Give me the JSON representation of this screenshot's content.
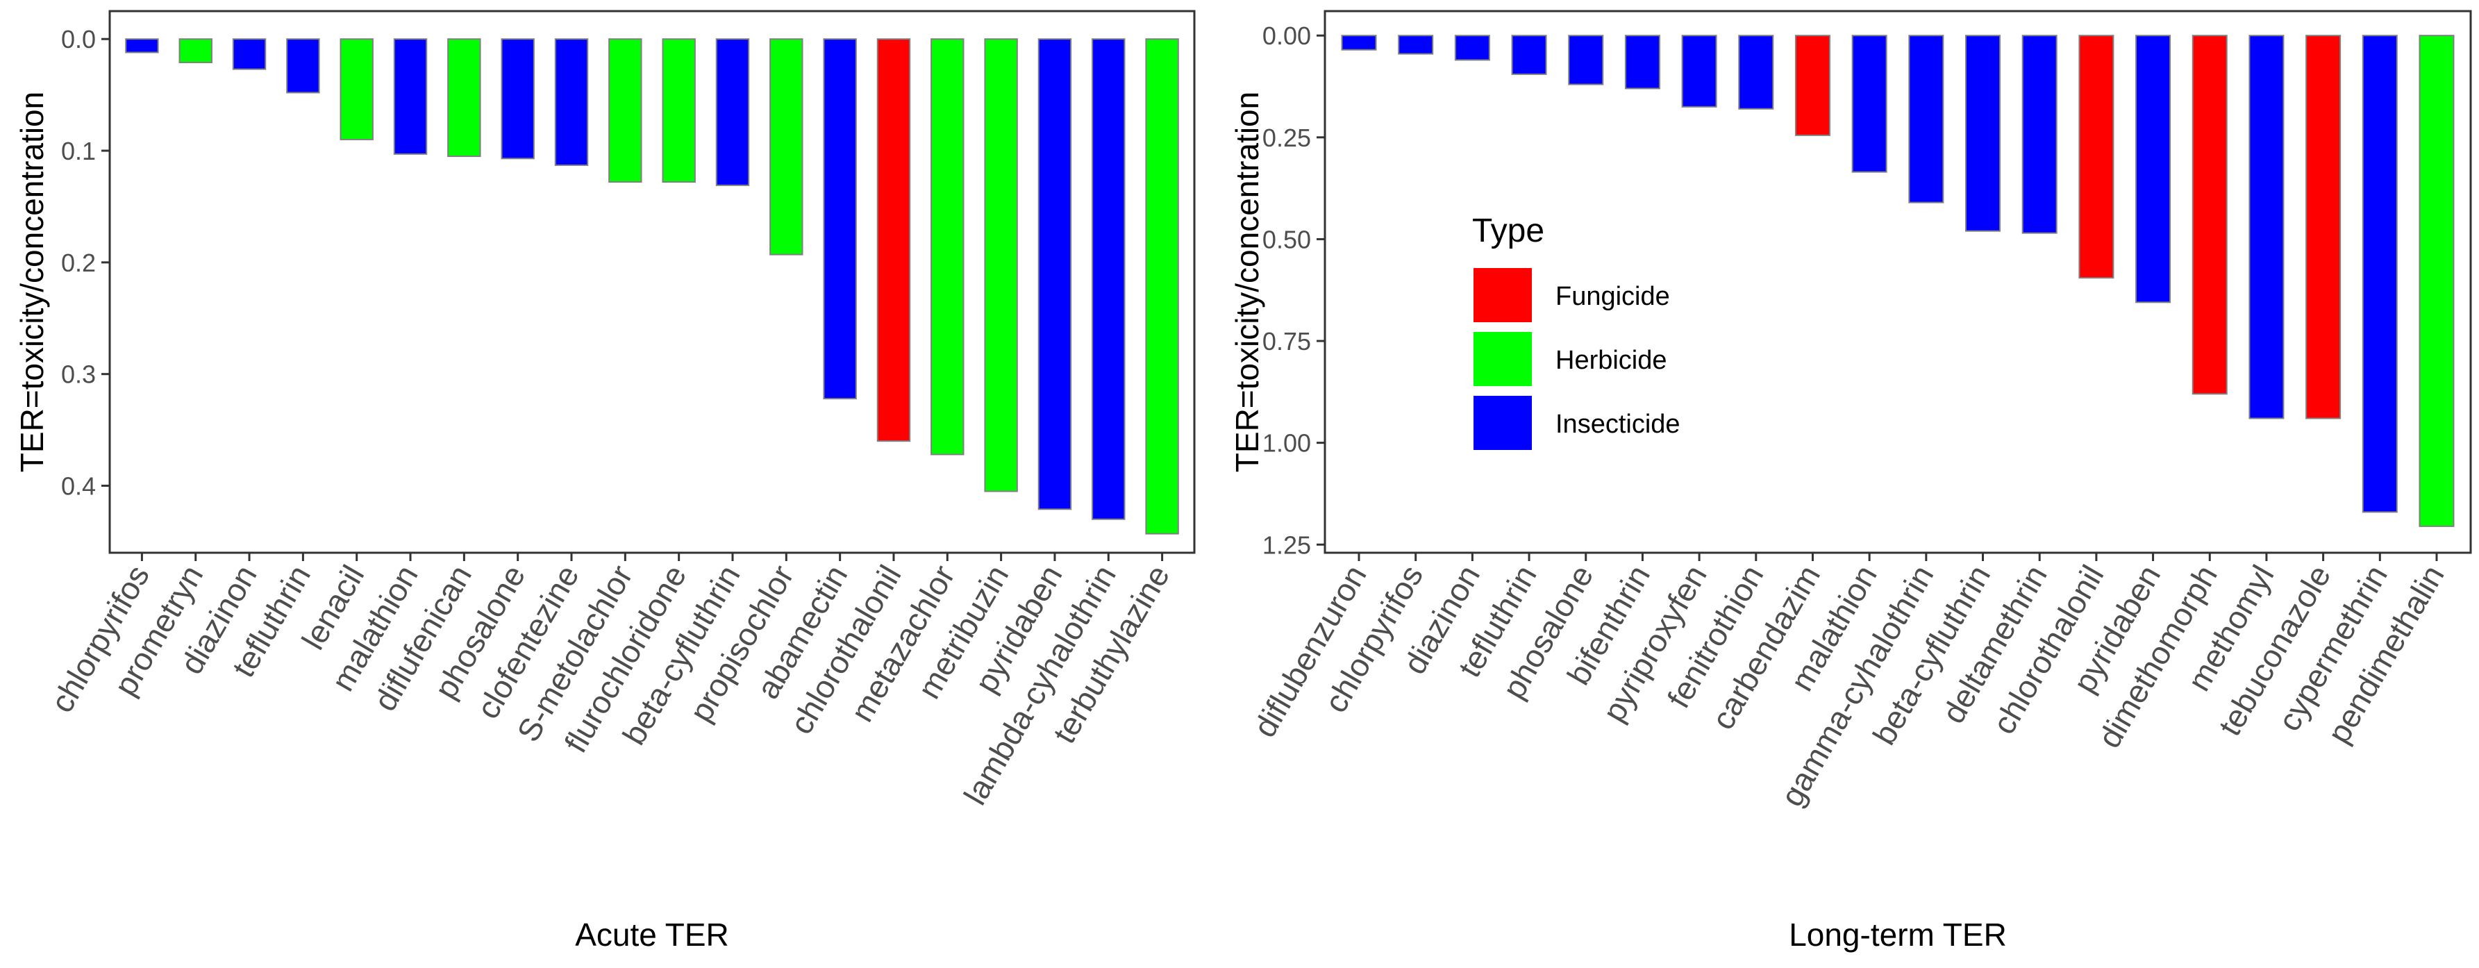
{
  "chart_data": [
    {
      "type": "bar",
      "title": "",
      "xlabel": "Acute TER",
      "ylabel": "TER=toxicity/concentration",
      "y_reversed": true,
      "ylim": [
        -0.025,
        0.46
      ],
      "yticks": [
        0.0,
        0.1,
        0.2,
        0.3,
        0.4
      ],
      "ytick_labels": [
        "0.0",
        "0.1",
        "0.2",
        "0.3",
        "0.4"
      ],
      "categories": [
        "chlorpyrifos",
        "prometryn",
        "diazinon",
        "tefluthrin",
        "lenacil",
        "malathion",
        "diflufenican",
        "phosalone",
        "clofentezine",
        "S-metolachlor",
        "flurochloridone",
        "beta-cyfluthrin",
        "propisochlor",
        "abamectin",
        "chlorothalonil",
        "metazachlor",
        "metribuzin",
        "pyridaben",
        "lambda-cyhalothrin",
        "terbuthylazine"
      ],
      "values": [
        0.012,
        0.021,
        0.027,
        0.048,
        0.09,
        0.103,
        0.105,
        0.107,
        0.113,
        0.128,
        0.128,
        0.131,
        0.193,
        0.322,
        0.36,
        0.372,
        0.405,
        0.421,
        0.43,
        0.443
      ],
      "types": [
        "Insecticide",
        "Herbicide",
        "Insecticide",
        "Insecticide",
        "Herbicide",
        "Insecticide",
        "Herbicide",
        "Insecticide",
        "Insecticide",
        "Herbicide",
        "Herbicide",
        "Insecticide",
        "Herbicide",
        "Insecticide",
        "Fungicide",
        "Herbicide",
        "Herbicide",
        "Insecticide",
        "Insecticide",
        "Herbicide"
      ]
    },
    {
      "type": "bar",
      "title": "",
      "xlabel": "Long-term TER",
      "ylabel": "TER=toxicity/concentration",
      "y_reversed": true,
      "ylim": [
        -0.06,
        1.27
      ],
      "yticks": [
        0.0,
        0.25,
        0.5,
        0.75,
        1.0,
        1.25
      ],
      "ytick_labels": [
        "0.00",
        "0.25",
        "0.50",
        "0.75",
        "1.00",
        "1.25"
      ],
      "categories": [
        "diflubenzuron",
        "chlorpyrifos",
        "diazinon",
        "tefluthrin",
        "phosalone",
        "bifenthrin",
        "pyriproxyfen",
        "fenitrothion",
        "carbendazim",
        "malathion",
        "gamma-cyhalothrin",
        "beta-cyfluthrin",
        "deltamethrin",
        "chlorothalonil",
        "pyridaben",
        "dimethomorph",
        "methomyl",
        "tebuconazole",
        "cypermethrin",
        "pendimethalin"
      ],
      "values": [
        0.035,
        0.045,
        0.06,
        0.095,
        0.12,
        0.13,
        0.175,
        0.18,
        0.245,
        0.335,
        0.41,
        0.48,
        0.485,
        0.595,
        0.655,
        0.88,
        0.94,
        0.94,
        1.17,
        1.205
      ],
      "types": [
        "Insecticide",
        "Insecticide",
        "Insecticide",
        "Insecticide",
        "Insecticide",
        "Insecticide",
        "Insecticide",
        "Insecticide",
        "Fungicide",
        "Insecticide",
        "Insecticide",
        "Insecticide",
        "Insecticide",
        "Fungicide",
        "Insecticide",
        "Fungicide",
        "Insecticide",
        "Fungicide",
        "Insecticide",
        "Herbicide"
      ]
    }
  ],
  "legend": {
    "title": "Type",
    "placement": "inside right panel, upper-left",
    "entries": [
      {
        "name": "Fungicide",
        "color": "#ff0000"
      },
      {
        "name": "Herbicide",
        "color": "#00ff00"
      },
      {
        "name": "Insecticide",
        "color": "#0000ff"
      }
    ]
  }
}
